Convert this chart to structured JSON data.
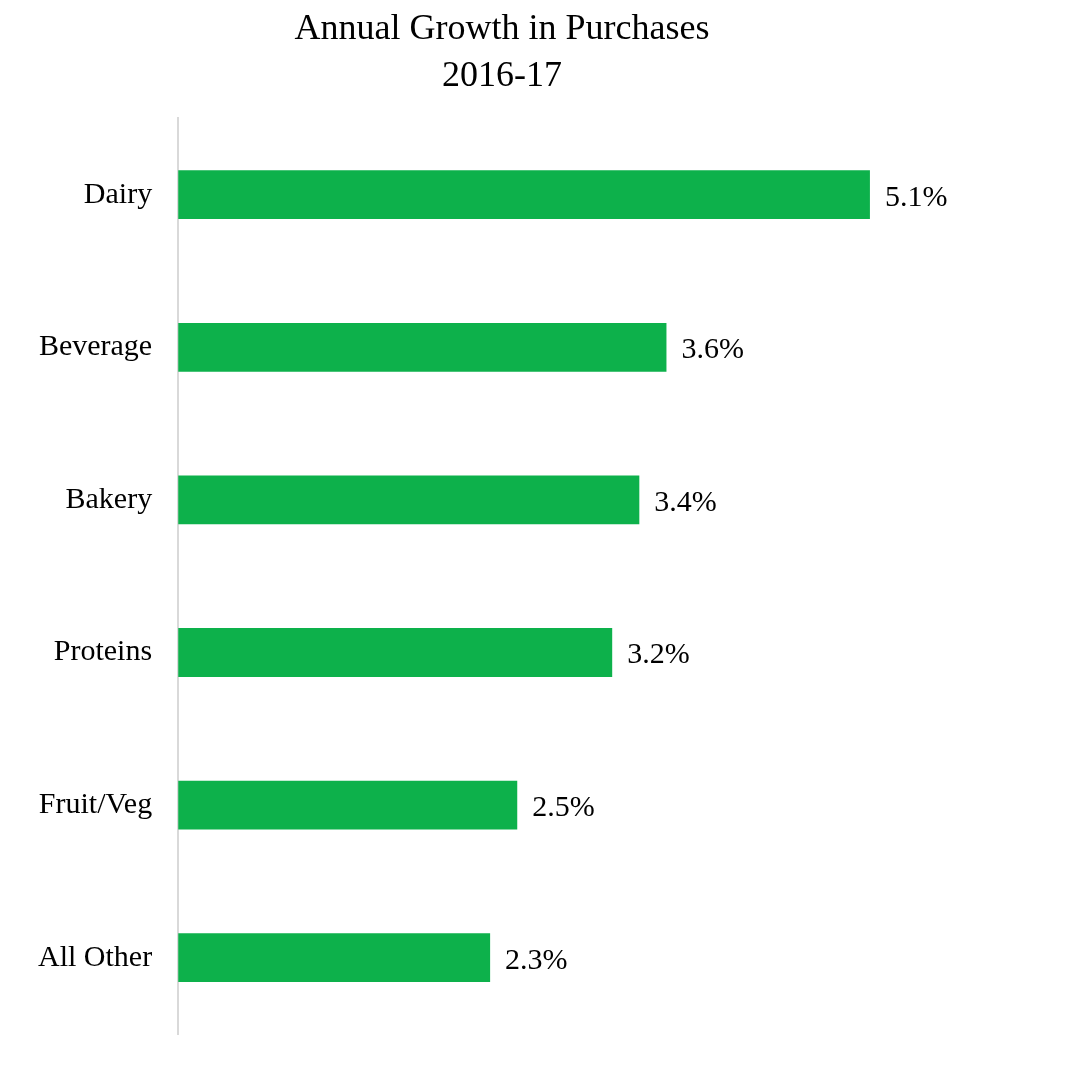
{
  "chart_data": {
    "type": "bar",
    "orientation": "horizontal",
    "title": "Annual Growth in Purchases",
    "subtitle": "2016-17",
    "categories": [
      "Dairy",
      "Beverage",
      "Bakery",
      "Proteins",
      "Fruit/Veg",
      "All Other"
    ],
    "values": [
      5.1,
      3.6,
      3.4,
      3.2,
      2.5,
      2.3
    ],
    "value_labels": [
      "5.1%",
      "3.6%",
      "3.4%",
      "3.2%",
      "2.5%",
      "2.3%"
    ],
    "color": "#0db14b",
    "grid": false,
    "legend": false,
    "tick_labels": "y"
  }
}
